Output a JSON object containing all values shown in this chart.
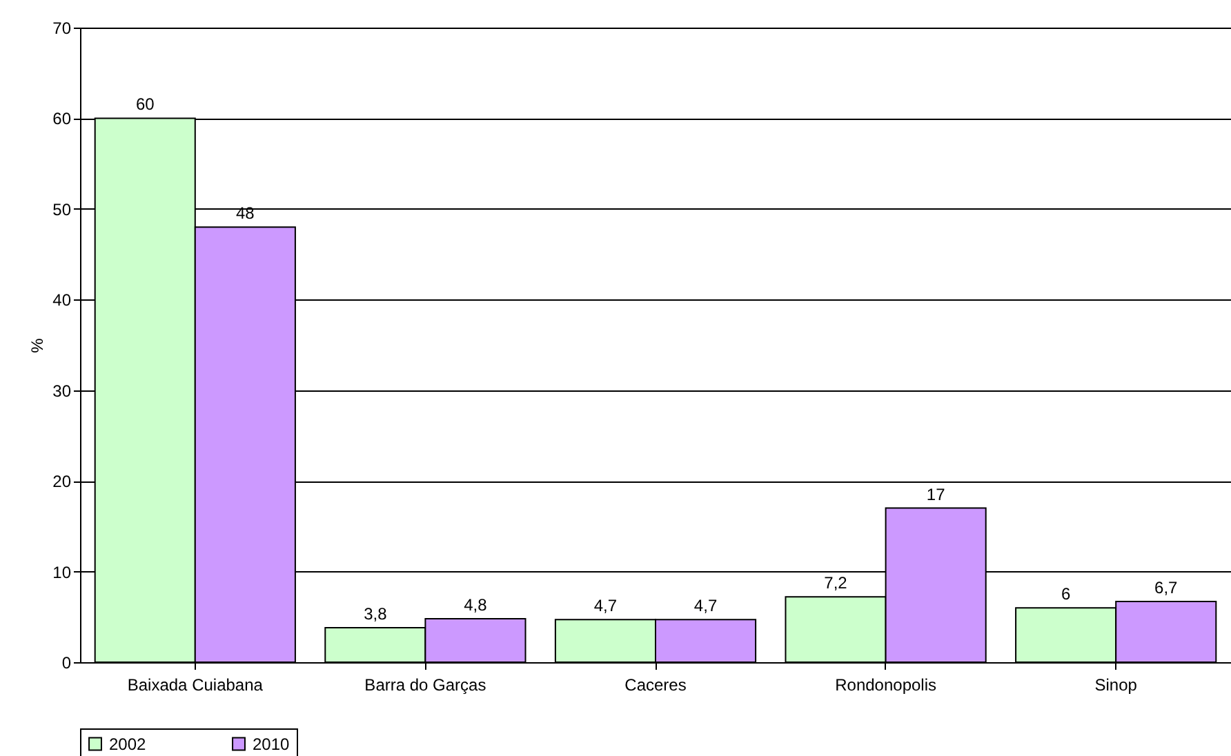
{
  "chart_data": {
    "type": "bar",
    "ylabel": "%",
    "categories": [
      "Baixada Cuiabana",
      "Barra do Garças",
      "Caceres",
      "Rondonopolis",
      "Sinop"
    ],
    "series": [
      {
        "name": "2002",
        "color": "#ccffcc",
        "values": [
          60,
          3.8,
          4.7,
          7.2,
          6
        ],
        "value_labels": [
          "60",
          "3,8",
          "4,7",
          "7,2",
          "6"
        ]
      },
      {
        "name": "2010",
        "color": "#cc99ff",
        "values": [
          48,
          4.8,
          4.7,
          17,
          6.7
        ],
        "value_labels": [
          "48",
          "4,8",
          "4,7",
          "17",
          "6,7"
        ]
      }
    ],
    "ylim": [
      0,
      70
    ],
    "yticks": [
      0,
      10,
      20,
      30,
      40,
      50,
      60,
      70
    ],
    "grid": "y",
    "legend": "bottom"
  }
}
